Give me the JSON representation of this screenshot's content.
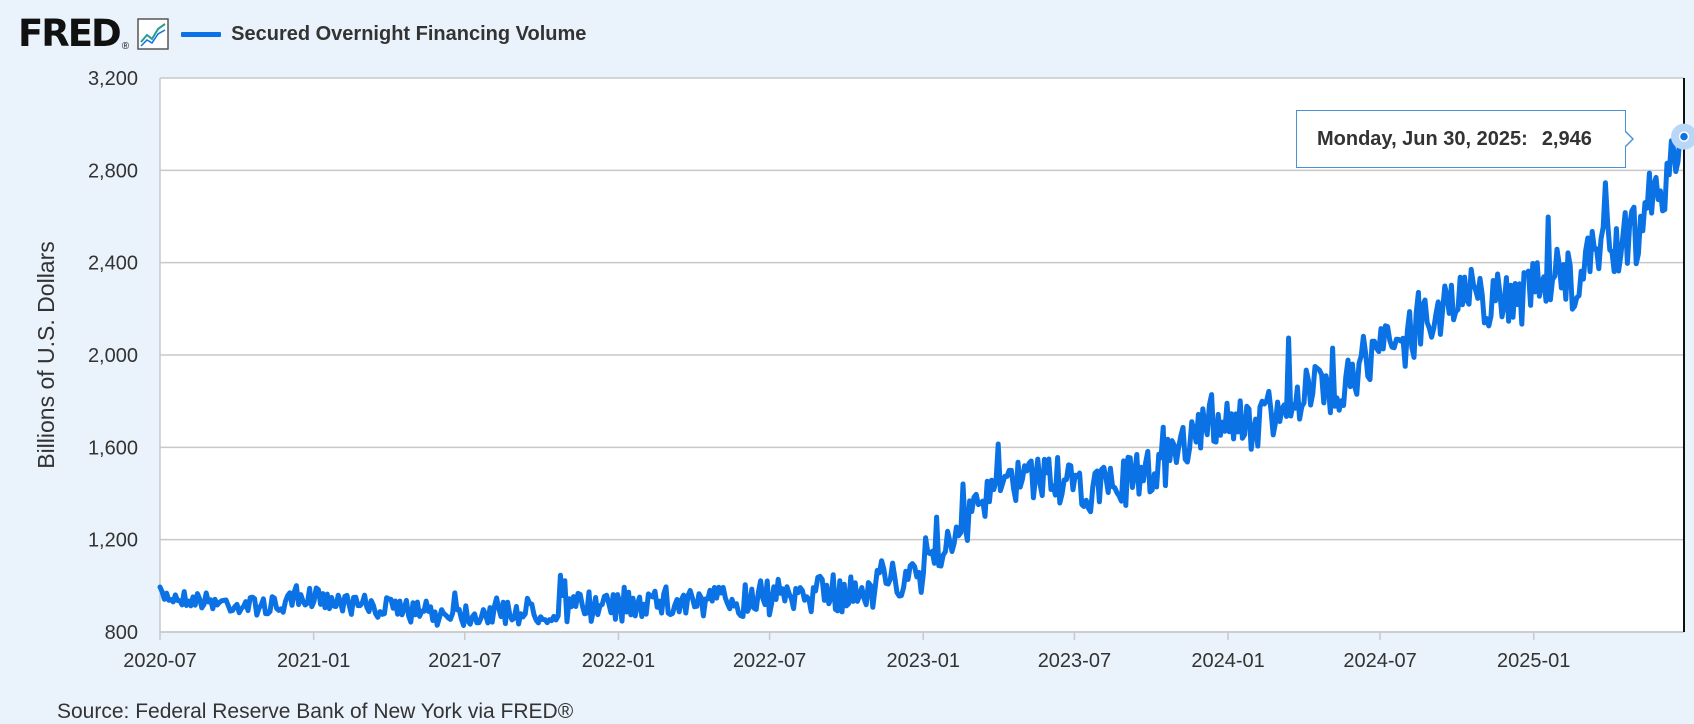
{
  "header": {
    "logo_text": "FRED",
    "logo_mark": "®",
    "graph_icon": "line-graph-icon",
    "legend_label": "Secured Overnight Financing Volume"
  },
  "tooltip": {
    "date_label": "Monday, Jun 30, 2025:",
    "value_label": "2,946"
  },
  "source_text": "Source: Federal Reserve Bank of New York via FRED®",
  "colors": {
    "series": "#0b72e6",
    "background": "#eaf3fb",
    "plot_background": "#ffffff",
    "grid": "#c8c8c8",
    "text": "#333333"
  },
  "chart_data": {
    "type": "line",
    "title": "",
    "xlabel": "",
    "ylabel": "Billions of U.S. Dollars",
    "ylim": [
      800,
      3200
    ],
    "y_ticks": [
      800,
      1200,
      1600,
      2000,
      2400,
      2800,
      3200
    ],
    "y_tick_labels": [
      "800",
      "1,200",
      "1,600",
      "2,000",
      "2,400",
      "2,800",
      "3,200"
    ],
    "xlim": [
      "2020-07-01",
      "2025-06-30"
    ],
    "x_ticks": [
      "2020-07-01",
      "2021-01-01",
      "2021-07-01",
      "2022-01-01",
      "2022-07-01",
      "2023-01-01",
      "2023-07-01",
      "2024-01-01",
      "2024-07-01",
      "2025-01-01"
    ],
    "x_tick_labels": [
      "2020-07",
      "2021-01",
      "2021-07",
      "2022-01",
      "2022-07",
      "2023-01",
      "2023-07",
      "2024-01",
      "2024-07",
      "2025-01"
    ],
    "grid": true,
    "legend": "top-left",
    "series": [
      {
        "name": "Secured Overnight Financing Volume",
        "x": [
          "2020-07-01",
          "2020-08-15",
          "2020-10-01",
          "2020-11-15",
          "2021-01-01",
          "2021-02-15",
          "2021-04-01",
          "2021-05-15",
          "2021-07-01",
          "2021-08-15",
          "2021-10-01",
          "2021-11-15",
          "2022-01-01",
          "2022-02-15",
          "2022-04-01",
          "2022-05-15",
          "2022-07-01",
          "2022-08-15",
          "2022-10-01",
          "2022-11-01",
          "2022-12-01",
          "2022-12-30",
          "2023-01-03",
          "2023-02-01",
          "2023-03-01",
          "2023-04-01",
          "2023-05-01",
          "2023-06-01",
          "2023-07-01",
          "2023-08-01",
          "2023-09-01",
          "2023-10-01",
          "2023-11-01",
          "2023-12-01",
          "2024-01-01",
          "2024-02-01",
          "2024-03-01",
          "2024-04-01",
          "2024-05-01",
          "2024-06-01",
          "2024-07-01",
          "2024-08-01",
          "2024-09-01",
          "2024-10-01",
          "2024-11-01",
          "2024-12-01",
          "2025-01-01",
          "2025-02-01",
          "2025-03-01",
          "2025-03-15",
          "2025-04-01",
          "2025-05-01",
          "2025-06-01",
          "2025-06-30"
        ],
        "y": [
          960,
          940,
          920,
          910,
          950,
          920,
          900,
          880,
          880,
          890,
          890,
          910,
          900,
          930,
          920,
          940,
          950,
          960,
          970,
          990,
          1030,
          1010,
          1150,
          1180,
          1300,
          1420,
          1470,
          1480,
          1410,
          1400,
          1450,
          1500,
          1560,
          1680,
          1720,
          1700,
          1760,
          1840,
          1840,
          1940,
          2020,
          2070,
          2200,
          2240,
          2250,
          2240,
          2270,
          2310,
          2320,
          2450,
          2470,
          2520,
          2650,
          2946
        ]
      }
    ]
  }
}
